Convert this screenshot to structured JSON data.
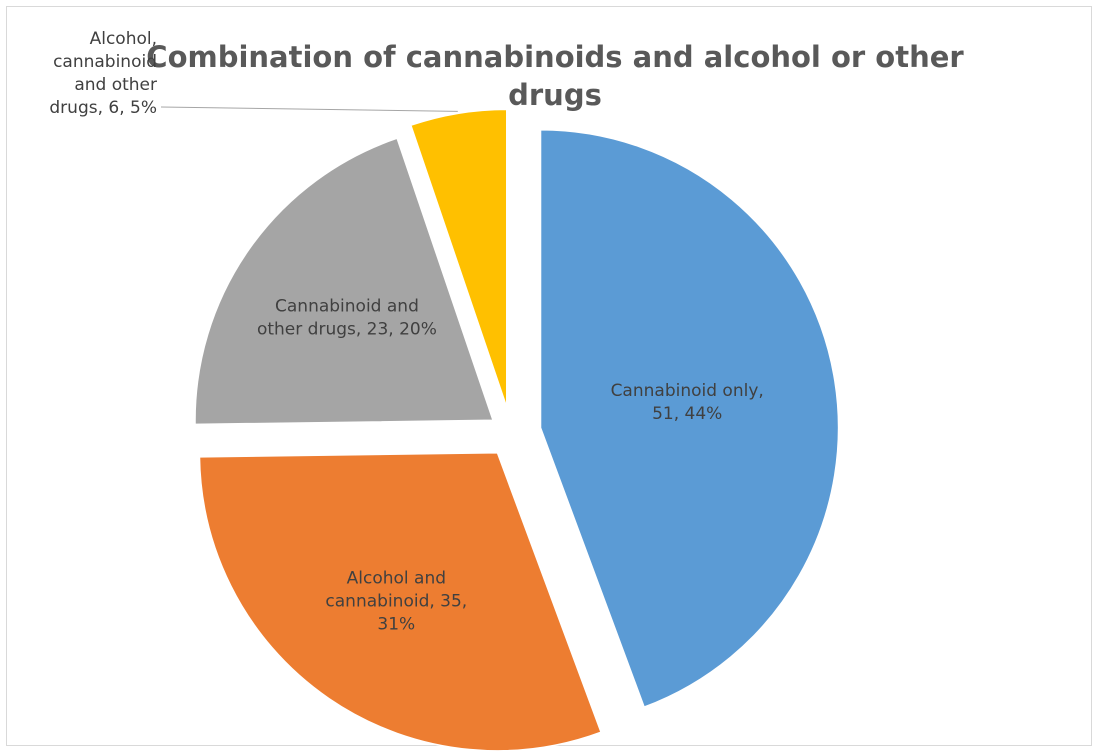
{
  "chart_data": {
    "type": "pie",
    "title": "Combination of cannabinoids and alcohol or other drugs",
    "title_lines": [
      "Combination of cannabinoids and alcohol or other",
      "drugs"
    ],
    "slices": [
      {
        "name": "Cannabinoid only",
        "value": 51,
        "percent": 44,
        "color": "#5B9BD5",
        "label_lines": [
          "Cannabinoid only,",
          "51, 44%"
        ]
      },
      {
        "name": "Alcohol and cannabinoid",
        "value": 35,
        "percent": 31,
        "color": "#ED7D31",
        "label_lines": [
          "Alcohol and",
          "cannabinoid, 35,",
          "31%"
        ]
      },
      {
        "name": "Cannabinoid and other drugs",
        "value": 23,
        "percent": 20,
        "color": "#A5A5A5",
        "label_lines": [
          "Cannabinoid and",
          "other drugs, 23, 20%"
        ]
      },
      {
        "name": "Alcohol, cannabinoid and other drugs",
        "value": 6,
        "percent": 5,
        "color": "#FFC000",
        "label_lines": [
          "Alcohol,",
          "cannabinoid",
          "and other",
          "drugs, 6, 5%"
        ]
      }
    ],
    "legend": "none",
    "exploded": true,
    "start_angle": "12 o'clock",
    "direction": "clockwise"
  }
}
